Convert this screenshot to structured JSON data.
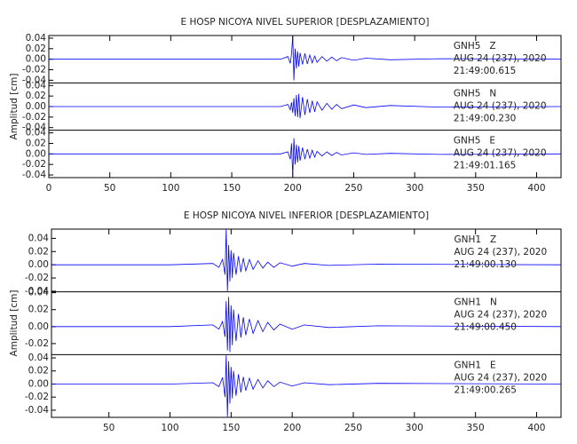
{
  "chart_data": [
    {
      "type": "line",
      "title": "E HOSP NICOYA NIVEL SUPERIOR [DESPLAZAMIENTO]",
      "ylabel": "Amplitud [cm]",
      "xlim": [
        0,
        420
      ],
      "xticks": [
        0,
        50,
        100,
        150,
        200,
        250,
        300,
        350,
        400
      ],
      "x": [
        0,
        100,
        190,
        196,
        198,
        199,
        200,
        201,
        202,
        203,
        204,
        205,
        206,
        208,
        210,
        212,
        214,
        216,
        218,
        220,
        224,
        228,
        232,
        236,
        240,
        250,
        260,
        280,
        320,
        420
      ],
      "panels": [
        {
          "station": "GNH5   Z",
          "date": "AUG 24 (237), 2020",
          "time": "21:49:00.615",
          "color": "#0000ff",
          "ylim": [
            -0.045,
            0.045
          ],
          "yticks": [
            0.04,
            0.02,
            {
              "value": 0,
              "label": "0.00"
            },
            -0.02,
            -0.04
          ],
          "values": [
            0,
            0,
            0,
            0.005,
            -0.008,
            0.01,
            0.045,
            -0.04,
            0.02,
            -0.018,
            0.015,
            -0.014,
            0.012,
            -0.01,
            0.011,
            -0.009,
            0.008,
            -0.007,
            0.006,
            -0.006,
            0.005,
            -0.004,
            0.004,
            -0.003,
            0.003,
            -0.002,
            0.002,
            -0.001,
            0.001,
            0
          ]
        },
        {
          "station": "GNH5   N",
          "date": "AUG 24 (237), 2020",
          "time": "21:49:00.230",
          "color": "#0000ff",
          "ylim": [
            -0.045,
            0.045
          ],
          "yticks": [
            0.04,
            0.02,
            {
              "value": 0,
              "label": "0.00"
            },
            -0.02,
            -0.04
          ],
          "values": [
            0,
            0,
            0,
            0.004,
            -0.006,
            0.008,
            -0.012,
            0.016,
            -0.018,
            0.022,
            -0.02,
            0.024,
            -0.022,
            0.018,
            -0.016,
            0.014,
            -0.012,
            0.011,
            -0.01,
            0.009,
            -0.007,
            0.006,
            -0.005,
            0.004,
            -0.004,
            0.003,
            -0.002,
            0.002,
            -0.001,
            0
          ]
        },
        {
          "station": "GNH5   E",
          "date": "AUG 24 (237), 2020",
          "time": "21:49:01.165",
          "color": "#0000ff",
          "ylim": [
            -0.045,
            0.045
          ],
          "yticks": [
            0.04,
            0.02,
            {
              "value": 0,
              "label": "0.00"
            },
            -0.02,
            -0.04
          ],
          "values": [
            0,
            0,
            0,
            0.004,
            -0.01,
            0.02,
            -0.044,
            0.03,
            -0.02,
            0.018,
            -0.016,
            0.015,
            -0.013,
            0.012,
            -0.01,
            0.009,
            -0.008,
            0.007,
            -0.006,
            0.005,
            -0.004,
            0.004,
            -0.003,
            0.003,
            -0.002,
            0.002,
            -0.001,
            0.001,
            -0.001,
            0
          ]
        }
      ]
    },
    {
      "type": "line",
      "title": "E HOSP NICOYA NIVEL INFERIOR [DESPLAZAMIENTO]",
      "ylabel": "Amplitud [cm]",
      "xlim": [
        3,
        420
      ],
      "xticks": [
        50,
        100,
        150,
        200,
        250,
        300,
        350,
        400
      ],
      "x": [
        3,
        100,
        135,
        140,
        143,
        145,
        146,
        147,
        148,
        149,
        150,
        151,
        152,
        154,
        156,
        158,
        160,
        162,
        165,
        168,
        172,
        176,
        180,
        185,
        190,
        200,
        210,
        230,
        270,
        420
      ],
      "panels": [
        {
          "station": "GNH1   Z",
          "date": "AUG 24 (237), 2020",
          "time": "21:49:00.130",
          "color": "#0000ff",
          "ylim": [
            -0.041,
            0.054
          ],
          "yticks": [
            0.04,
            0.02,
            {
              "value": 0,
              "label": "0.00"
            },
            -0.02,
            -0.04
          ],
          "values": [
            0,
            0,
            0.002,
            -0.004,
            0.008,
            -0.015,
            0.054,
            -0.04,
            0.03,
            -0.025,
            0.022,
            -0.02,
            0.018,
            -0.015,
            0.013,
            -0.011,
            0.01,
            -0.009,
            0.008,
            -0.007,
            0.006,
            -0.005,
            0.004,
            -0.004,
            0.003,
            -0.002,
            0.002,
            -0.001,
            0.001,
            0
          ]
        },
        {
          "station": "GNH1   N",
          "date": "AUG 24 (237), 2020",
          "time": "21:49:00.450",
          "color": "#0000ff",
          "ylim": [
            -0.033,
            0.041
          ],
          "yticks": [
            0.04,
            0.02,
            {
              "value": 0,
              "label": "0.00"
            },
            -0.02
          ],
          "values": [
            0,
            0,
            0.002,
            -0.003,
            0.006,
            -0.012,
            0.03,
            -0.028,
            0.035,
            -0.03,
            0.025,
            -0.022,
            0.02,
            -0.017,
            0.015,
            -0.013,
            0.011,
            -0.01,
            0.009,
            -0.008,
            0.007,
            -0.006,
            0.005,
            -0.004,
            0.003,
            -0.003,
            0.002,
            -0.001,
            0.001,
            0
          ]
        },
        {
          "station": "GNH1   E",
          "date": "AUG 24 (237), 2020",
          "time": "21:49:00.265",
          "color": "#0000ff",
          "ylim": [
            -0.051,
            0.045
          ],
          "yticks": [
            0.04,
            0.02,
            {
              "value": 0,
              "label": "0.00"
            },
            -0.02,
            -0.04
          ],
          "values": [
            0,
            0,
            0.002,
            -0.004,
            0.01,
            -0.02,
            0.044,
            -0.05,
            0.035,
            -0.03,
            0.026,
            -0.022,
            0.02,
            -0.018,
            0.015,
            -0.013,
            0.011,
            -0.01,
            0.009,
            -0.008,
            0.007,
            -0.006,
            0.005,
            -0.004,
            0.003,
            -0.003,
            0.002,
            -0.001,
            0.001,
            0
          ]
        }
      ]
    }
  ]
}
